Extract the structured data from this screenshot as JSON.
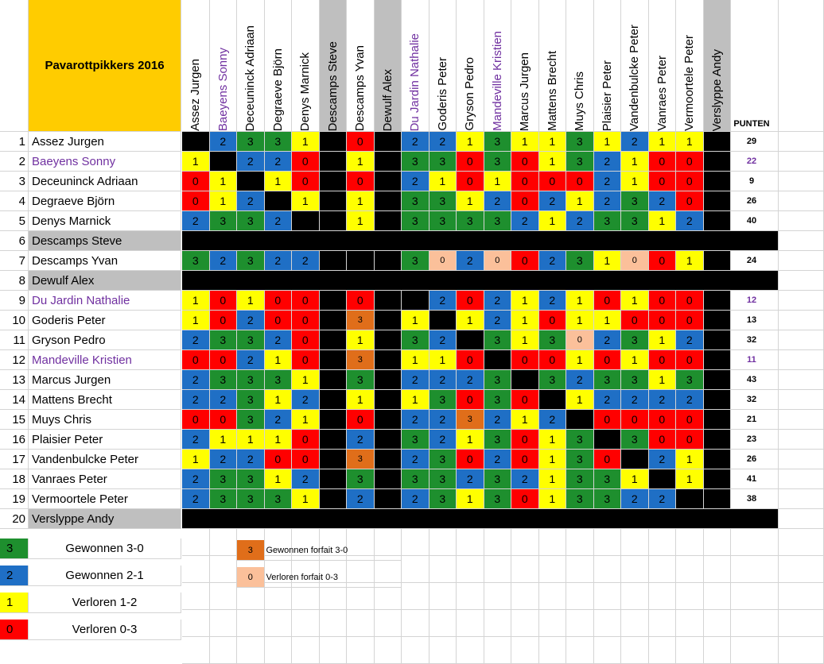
{
  "title": "Pavarottpikkers 2016",
  "points_header": "PUNTEN",
  "colors": {
    "3": "#1e8f2e",
    "2": "#1f6fc5",
    "1": "#ffff00",
    "0": "#ff0000",
    "f3": "#e06e1a",
    "f0": "#fbc09a",
    "black": "#000000",
    "grey": "#bfbfbf",
    "title_bg": "#ffcc00",
    "purple_text": "#7030a0"
  },
  "players": [
    {
      "no": "1",
      "name": "Assez Jurgen",
      "purple": false,
      "excluded": false,
      "points": "29",
      "results": [
        "X",
        "2",
        "3",
        "3",
        "1",
        "",
        "0",
        "",
        "2",
        "2",
        "1",
        "3",
        "1",
        "1",
        "3",
        "1",
        "2",
        "1",
        "1",
        ""
      ]
    },
    {
      "no": "2",
      "name": "Baeyens Sonny",
      "purple": true,
      "excluded": false,
      "points": "22",
      "results": [
        "1",
        "X",
        "2",
        "2",
        "0",
        "",
        "1",
        "",
        "3",
        "3",
        "0",
        "3",
        "0",
        "1",
        "3",
        "2",
        "1",
        "0",
        "0",
        ""
      ]
    },
    {
      "no": "3",
      "name": "Deceuninck Adriaan",
      "purple": false,
      "excluded": false,
      "points": "9",
      "results": [
        "0",
        "1",
        "X",
        "1",
        "0",
        "",
        "0",
        "",
        "2",
        "1",
        "0",
        "1",
        "0",
        "0",
        "0",
        "2",
        "1",
        "0",
        "0",
        ""
      ]
    },
    {
      "no": "4",
      "name": "Degraeve Björn",
      "purple": false,
      "excluded": false,
      "points": "26",
      "results": [
        "0",
        "1",
        "2",
        "X",
        "1",
        "",
        "1",
        "",
        "3",
        "3",
        "1",
        "2",
        "0",
        "2",
        "1",
        "2",
        "3",
        "2",
        "0",
        ""
      ]
    },
    {
      "no": "5",
      "name": "Denys Marnick",
      "purple": false,
      "excluded": false,
      "points": "40",
      "results": [
        "2",
        "3",
        "3",
        "2",
        "X",
        "",
        "1",
        "",
        "3",
        "3",
        "3",
        "3",
        "2",
        "1",
        "2",
        "3",
        "3",
        "1",
        "2",
        ""
      ]
    },
    {
      "no": "6",
      "name": "Descamps Steve",
      "purple": false,
      "excluded": true,
      "points": "",
      "results": []
    },
    {
      "no": "7",
      "name": "Descamps Yvan",
      "purple": false,
      "excluded": false,
      "points": "24",
      "results": [
        "3",
        "2",
        "3",
        "2",
        "2",
        "",
        "X",
        "",
        "3",
        "f0",
        "2",
        "f0",
        "0",
        "2",
        "3",
        "1",
        "f0",
        "0",
        "1",
        ""
      ]
    },
    {
      "no": "8",
      "name": "Dewulf Alex",
      "purple": false,
      "excluded": true,
      "points": "",
      "results": []
    },
    {
      "no": "9",
      "name": "Du Jardin Nathalie",
      "purple": true,
      "excluded": false,
      "points": "12",
      "results": [
        "1",
        "0",
        "1",
        "0",
        "0",
        "",
        "0",
        "",
        "X",
        "2",
        "0",
        "2",
        "1",
        "2",
        "1",
        "0",
        "1",
        "0",
        "0",
        ""
      ]
    },
    {
      "no": "10",
      "name": "Goderis Peter",
      "purple": false,
      "excluded": false,
      "points": "13",
      "results": [
        "1",
        "0",
        "2",
        "0",
        "0",
        "",
        "f3",
        "",
        "1",
        "X",
        "1",
        "2",
        "1",
        "0",
        "1",
        "1",
        "0",
        "0",
        "0",
        ""
      ]
    },
    {
      "no": "11",
      "name": "Gryson Pedro",
      "purple": false,
      "excluded": false,
      "points": "32",
      "results": [
        "2",
        "3",
        "3",
        "2",
        "0",
        "",
        "1",
        "",
        "3",
        "2",
        "X",
        "3",
        "1",
        "3",
        "f0",
        "2",
        "3",
        "1",
        "2",
        ""
      ]
    },
    {
      "no": "12",
      "name": "Mandeville Kristien",
      "purple": true,
      "excluded": false,
      "points": "11",
      "results": [
        "0",
        "0",
        "2",
        "1",
        "0",
        "",
        "f3",
        "",
        "1",
        "1",
        "0",
        "X",
        "0",
        "0",
        "1",
        "0",
        "1",
        "0",
        "0",
        ""
      ]
    },
    {
      "no": "13",
      "name": "Marcus Jurgen",
      "purple": false,
      "excluded": false,
      "points": "43",
      "results": [
        "2",
        "3",
        "3",
        "3",
        "1",
        "",
        "3",
        "",
        "2",
        "2",
        "2",
        "3",
        "X",
        "3",
        "2",
        "3",
        "3",
        "1",
        "3",
        ""
      ]
    },
    {
      "no": "14",
      "name": "Mattens Brecht",
      "purple": false,
      "excluded": false,
      "points": "32",
      "results": [
        "2",
        "2",
        "3",
        "1",
        "2",
        "",
        "1",
        "",
        "1",
        "3",
        "0",
        "3",
        "0",
        "X",
        "1",
        "2",
        "2",
        "2",
        "2",
        ""
      ]
    },
    {
      "no": "15",
      "name": "Muys Chris",
      "purple": false,
      "excluded": false,
      "points": "21",
      "results": [
        "0",
        "0",
        "3",
        "2",
        "1",
        "",
        "0",
        "",
        "2",
        "2",
        "f3",
        "2",
        "1",
        "2",
        "X",
        "0",
        "0",
        "0",
        "0",
        ""
      ]
    },
    {
      "no": "16",
      "name": "Plaisier Peter",
      "purple": false,
      "excluded": false,
      "points": "23",
      "results": [
        "2",
        "1",
        "1",
        "1",
        "0",
        "",
        "2",
        "",
        "3",
        "2",
        "1",
        "3",
        "0",
        "1",
        "3",
        "X",
        "3",
        "0",
        "0",
        ""
      ]
    },
    {
      "no": "17",
      "name": "Vandenbulcke Peter",
      "purple": false,
      "excluded": false,
      "points": "26",
      "results": [
        "1",
        "2",
        "2",
        "0",
        "0",
        "",
        "f3",
        "",
        "2",
        "3",
        "0",
        "2",
        "0",
        "1",
        "3",
        "0",
        "X",
        "2",
        "1",
        ""
      ]
    },
    {
      "no": "18",
      "name": "Vanraes Peter",
      "purple": false,
      "excluded": false,
      "points": "41",
      "results": [
        "2",
        "3",
        "3",
        "1",
        "2",
        "",
        "3",
        "",
        "3",
        "3",
        "2",
        "3",
        "2",
        "1",
        "3",
        "3",
        "1",
        "X",
        "1",
        ""
      ]
    },
    {
      "no": "19",
      "name": "Vermoortele Peter",
      "purple": false,
      "excluded": false,
      "points": "38",
      "results": [
        "2",
        "3",
        "3",
        "3",
        "1",
        "",
        "2",
        "",
        "2",
        "3",
        "1",
        "3",
        "0",
        "1",
        "3",
        "3",
        "2",
        "2",
        "X",
        ""
      ]
    },
    {
      "no": "20",
      "name": "Verslyppe Andy",
      "purple": false,
      "excluded": true,
      "points": "",
      "results": []
    }
  ],
  "legend": [
    {
      "code": "3",
      "value": "3",
      "label": "Gewonnen 3-0"
    },
    {
      "code": "2",
      "value": "2",
      "label": "Gewonnen 2-1"
    },
    {
      "code": "1",
      "value": "1",
      "label": "Verloren 1-2"
    },
    {
      "code": "0",
      "value": "0",
      "label": "Verloren 0-3"
    }
  ],
  "legend_forfait": [
    {
      "code": "f3",
      "value": "3",
      "label": "Gewonnen forfait 3-0"
    },
    {
      "code": "f0",
      "value": "0",
      "label": "Verloren forfait 0-3"
    }
  ]
}
